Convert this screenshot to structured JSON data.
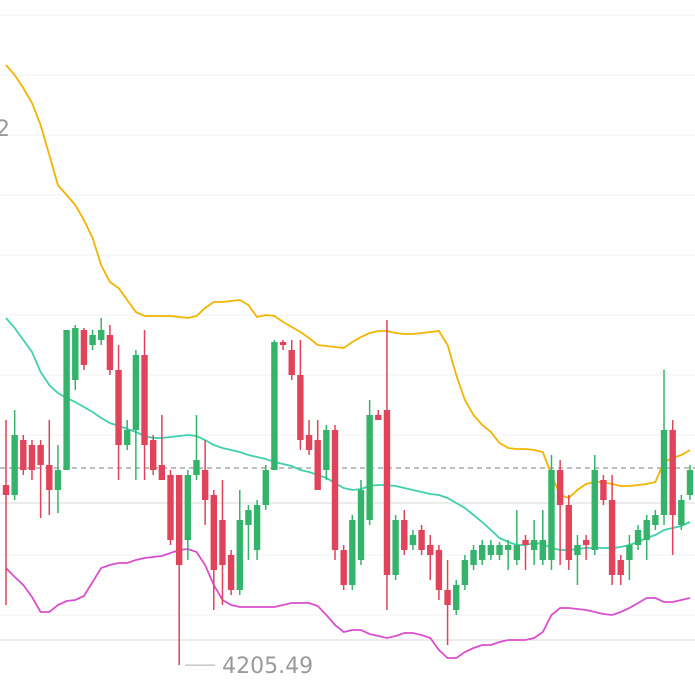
{
  "chart_data": {
    "type": "candlestick",
    "ylim": [
      4203.4,
      4272
    ],
    "up_color": "#34b46a",
    "down_color": "#e0435a",
    "open": [
      4223.5,
      4222.5,
      4228,
      4227.5,
      4227.5,
      4225.5,
      4223,
      4225,
      4234,
      4239,
      4237.5,
      4238,
      4238.5,
      4235,
      4227.5,
      4229,
      4236.5,
      4228,
      4225.5,
      4224.5,
      4224.5,
      4218,
      4224.5,
      4225,
      4222.5,
      4220,
      4216.5,
      4213,
      4219.5,
      4217,
      4221.5,
      4225,
      4237.8,
      4237,
      4234.5,
      4228.5,
      4228,
      4225,
      4229,
      4217,
      4213.5,
      4216,
      4220,
      4230.5,
      4231,
      4214.5,
      4220,
      4217.5,
      4219,
      4217.5,
      4217,
      4213,
      4211,
      4213.5,
      4215.5,
      4216,
      4216.5,
      4216.5,
      4217,
      4216,
      4218,
      4217,
      4216,
      4216,
      4225,
      4221.5,
      4216.5,
      4218,
      4217,
      4224,
      4222,
      4216,
      4216,
      4217.5,
      4218,
      4219.5,
      4220.5,
      4229,
      4219.5,
      4222.5
    ],
    "high": [
      4230,
      4231,
      4228.5,
      4228,
      4228,
      4230,
      4227.5,
      4239,
      4239.5,
      4239.2,
      4239,
      4240.2,
      4239.5,
      4237.5,
      4230,
      4237,
      4239,
      4228.5,
      4230.5,
      4225,
      4224.5,
      4225,
      4230.5,
      4228,
      4223,
      4224,
      4217,
      4223,
      4221.5,
      4222,
      4225.5,
      4238,
      4238,
      4238,
      4238,
      4230,
      4230,
      4229.5,
      4229.5,
      4217.5,
      4220.5,
      4224,
      4232,
      4231,
      4240,
      4220.5,
      4221,
      4219,
      4219.5,
      4218.5,
      4217.5,
      4216,
      4214,
      4216.5,
      4217.5,
      4218,
      4218,
      4217.8,
      4218,
      4221,
      4218.5,
      4220,
      4221,
      4226.5,
      4226,
      4222.5,
      4218.5,
      4218.5,
      4226.5,
      4224.5,
      4224.5,
      4216.5,
      4218.5,
      4219.5,
      4220.5,
      4221,
      4235,
      4230,
      4222.5,
      4225.5
    ],
    "low": [
      4211.5,
      4222,
      4224.5,
      4224,
      4220.2,
      4220.5,
      4220.7,
      4225,
      4233,
      4235,
      4237,
      4237.5,
      4234.5,
      4224,
      4227,
      4224,
      4224,
      4224.5,
      4224,
      4217.5,
      4205.49,
      4216,
      4224,
      4219.5,
      4211,
      4211.5,
      4212.5,
      4212.5,
      4216,
      4216,
      4221,
      4225,
      4237,
      4234,
      4227,
      4226.5,
      4223,
      4224,
      4216,
      4213,
      4213,
      4215.5,
      4219.5,
      4230,
      4211,
      4214,
      4216.5,
      4217,
      4216.5,
      4214,
      4212,
      4207.5,
      4210.5,
      4213,
      4215,
      4215.5,
      4216,
      4216,
      4215,
      4215.5,
      4215,
      4215.5,
      4215.5,
      4215,
      4215.5,
      4215,
      4213.5,
      4216,
      4216.5,
      4221.5,
      4213.5,
      4213.5,
      4214,
      4217,
      4216,
      4219,
      4219.5,
      4216.5,
      4219,
      4222
    ],
    "close": [
      4222.5,
      4228.5,
      4225,
      4225,
      4225.5,
      4223,
      4225,
      4239,
      4239.2,
      4235.5,
      4238.5,
      4239,
      4235,
      4227.5,
      4229,
      4236.5,
      4227.5,
      4225,
      4224,
      4218,
      4215.5,
      4224.5,
      4226,
      4222,
      4215,
      4215.5,
      4213,
      4220,
      4221,
      4221.5,
      4225,
      4237.8,
      4237.5,
      4234.5,
      4228,
      4227,
      4223,
      4229,
      4217,
      4213.5,
      4220,
      4223,
      4230.5,
      4230,
      4214.5,
      4220,
      4217,
      4218.5,
      4217,
      4216.5,
      4213,
      4211.5,
      4213.5,
      4216,
      4217,
      4217.5,
      4217.5,
      4217.5,
      4217.5,
      4217.5,
      4217.5,
      4218,
      4218,
      4225,
      4221.5,
      4216,
      4217.5,
      4217.5,
      4225,
      4222,
      4214.5,
      4214.5,
      4217.5,
      4219,
      4220,
      4220.5,
      4229,
      4220.5,
      4222,
      4225
    ],
    "bands": [
      {
        "color": "#f2b400",
        "values": [
          4265.5,
          4264.5,
          4263.2,
          4261.7,
          4259.5,
          4256.5,
          4253.5,
          4252.5,
          4251.5,
          4250,
          4248.2,
          4245.5,
          4243.8,
          4243.2,
          4242,
          4240.8,
          4240.4,
          4240.4,
          4240.4,
          4240.4,
          4240.3,
          4240.2,
          4240.4,
          4241.2,
          4241.8,
          4241.8,
          4241.9,
          4242,
          4241.5,
          4240.3,
          4240.5,
          4240.4,
          4239.8,
          4239.3,
          4238.8,
          4238.2,
          4237.5,
          4237.4,
          4237.3,
          4237.2,
          4237.8,
          4238.3,
          4238.7,
          4238.9,
          4238.9,
          4238.7,
          4238.6,
          4238.6,
          4238.7,
          4238.8,
          4238.9,
          4237.5,
          4234.5,
          4232,
          4230.5,
          4229.5,
          4228.8,
          4227.7,
          4227.2,
          4227.1,
          4227.1,
          4227,
          4226.8,
          4224.5,
          4222.5,
          4222.2,
          4223,
          4223.6,
          4223.8,
          4223.8,
          4223.6,
          4223.4,
          4223.4,
          4223.5,
          4223.6,
          4223.8,
          4225.8,
          4226.2,
          4226.5,
          4227
        ]
      },
      {
        "color": "#3fd0ae",
        "values": [
          4240.2,
          4239.2,
          4238,
          4236.8,
          4234.8,
          4233.5,
          4232.7,
          4232.2,
          4231.8,
          4231.3,
          4230.8,
          4230.2,
          4229.7,
          4229.4,
          4229.1,
          4228.8,
          4228.4,
          4228.2,
          4228.2,
          4228.3,
          4228.4,
          4228.5,
          4228.4,
          4228,
          4227.5,
          4227.2,
          4227,
          4226.8,
          4226.5,
          4226.3,
          4226.1,
          4225.8,
          4225.6,
          4225.4,
          4225,
          4224.8,
          4224.5,
          4224.2,
          4223.7,
          4223.2,
          4223,
          4223.1,
          4223.4,
          4223.5,
          4223.5,
          4223.4,
          4223.2,
          4223,
          4222.8,
          4222.6,
          4222.5,
          4222.2,
          4221.7,
          4221.2,
          4220.5,
          4219.8,
          4219,
          4218.2,
          4217.8,
          4217.5,
          4217.5,
          4217.7,
          4217.6,
          4217.2,
          4217,
          4217,
          4217.1,
          4217.2,
          4217.2,
          4217.2,
          4217.2,
          4217.3,
          4217.5,
          4217.8,
          4218.2,
          4218.5,
          4219,
          4219.2,
          4219.4,
          4219.8
        ]
      },
      {
        "color": "#d94fcf",
        "values": [
          4215.2,
          4214.3,
          4213.5,
          4212.3,
          4210.8,
          4210.8,
          4211.5,
          4211.9,
          4212,
          4212.4,
          4213.8,
          4215.2,
          4215.5,
          4215.7,
          4215.7,
          4216,
          4216.2,
          4216.3,
          4216.4,
          4216.7,
          4217,
          4217.1,
          4216.8,
          4215.5,
          4213.5,
          4212,
          4211.5,
          4211.3,
          4211.3,
          4211.3,
          4211.3,
          4211.3,
          4211.5,
          4211.7,
          4211.7,
          4211.7,
          4211.4,
          4210.5,
          4209.5,
          4208.8,
          4209,
          4209,
          4208.6,
          4208.4,
          4208.2,
          4208.4,
          4208.7,
          4208.7,
          4208.5,
          4208.2,
          4207,
          4206.2,
          4206.2,
          4206.8,
          4207.2,
          4207.5,
          4207.5,
          4207.8,
          4208,
          4208,
          4208,
          4208.2,
          4208.8,
          4210.5,
          4211.2,
          4211.2,
          4211.1,
          4211,
          4210.8,
          4210.6,
          4210.5,
          4210.8,
          4211.2,
          4211.7,
          4212.2,
          4212.2,
          4211.8,
          4211.8,
          4212,
          4212.2
        ]
      }
    ],
    "last_price": 4225.2,
    "annotations": [
      "2"
    ]
  }
}
